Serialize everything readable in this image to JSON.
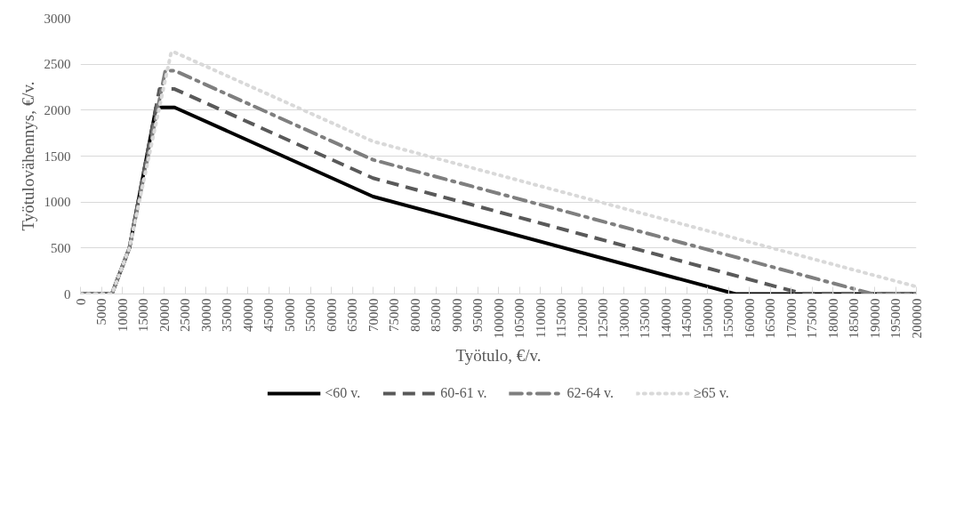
{
  "chart_data": {
    "type": "line",
    "xlabel": "Työtulo, €/v.",
    "ylabel": "Työtulovähennys, €/v.",
    "xlim": [
      0,
      200000
    ],
    "ylim": [
      0,
      3000
    ],
    "xticks": [
      0,
      5000,
      10000,
      15000,
      20000,
      25000,
      30000,
      35000,
      40000,
      45000,
      50000,
      55000,
      60000,
      65000,
      70000,
      75000,
      80000,
      85000,
      90000,
      95000,
      100000,
      105000,
      110000,
      115000,
      120000,
      125000,
      130000,
      135000,
      140000,
      145000,
      150000,
      155000,
      160000,
      165000,
      170000,
      175000,
      180000,
      185000,
      190000,
      195000,
      200000
    ],
    "yticks": [
      0,
      500,
      1000,
      1500,
      2000,
      2500,
      3000
    ],
    "grid": "y",
    "legend": "bottom",
    "marker": "none",
    "series": [
      {
        "name": "<60 v.",
        "color": "#000000",
        "line_style": "solid",
        "x": [
          0,
          7500,
          11700,
          18100,
          22500,
          70000,
          156700,
          200000
        ],
        "values": [
          0,
          0,
          500,
          2030,
          2030,
          1060,
          0,
          0
        ]
      },
      {
        "name": "60-61 v.",
        "color": "#595959",
        "line_style": "dashed",
        "x": [
          0,
          7500,
          11700,
          18900,
          22500,
          70000,
          173000,
          200000
        ],
        "values": [
          0,
          0,
          500,
          2230,
          2230,
          1260,
          0,
          0
        ]
      },
      {
        "name": "62-64 v.",
        "color": "#7f7f7f",
        "line_style": "dashdot",
        "x": [
          0,
          7500,
          11700,
          20300,
          22500,
          70000,
          189600,
          200000
        ],
        "values": [
          0,
          0,
          500,
          2430,
          2430,
          1460,
          0,
          0
        ]
      },
      {
        "name": "≥65 v.",
        "color": "#d9d9d9",
        "line_style": "dotted",
        "x": [
          0,
          7500,
          11700,
          21700,
          22500,
          70000,
          200000
        ],
        "values": [
          0,
          0,
          500,
          2630,
          2630,
          1660,
          80
        ]
      }
    ]
  }
}
